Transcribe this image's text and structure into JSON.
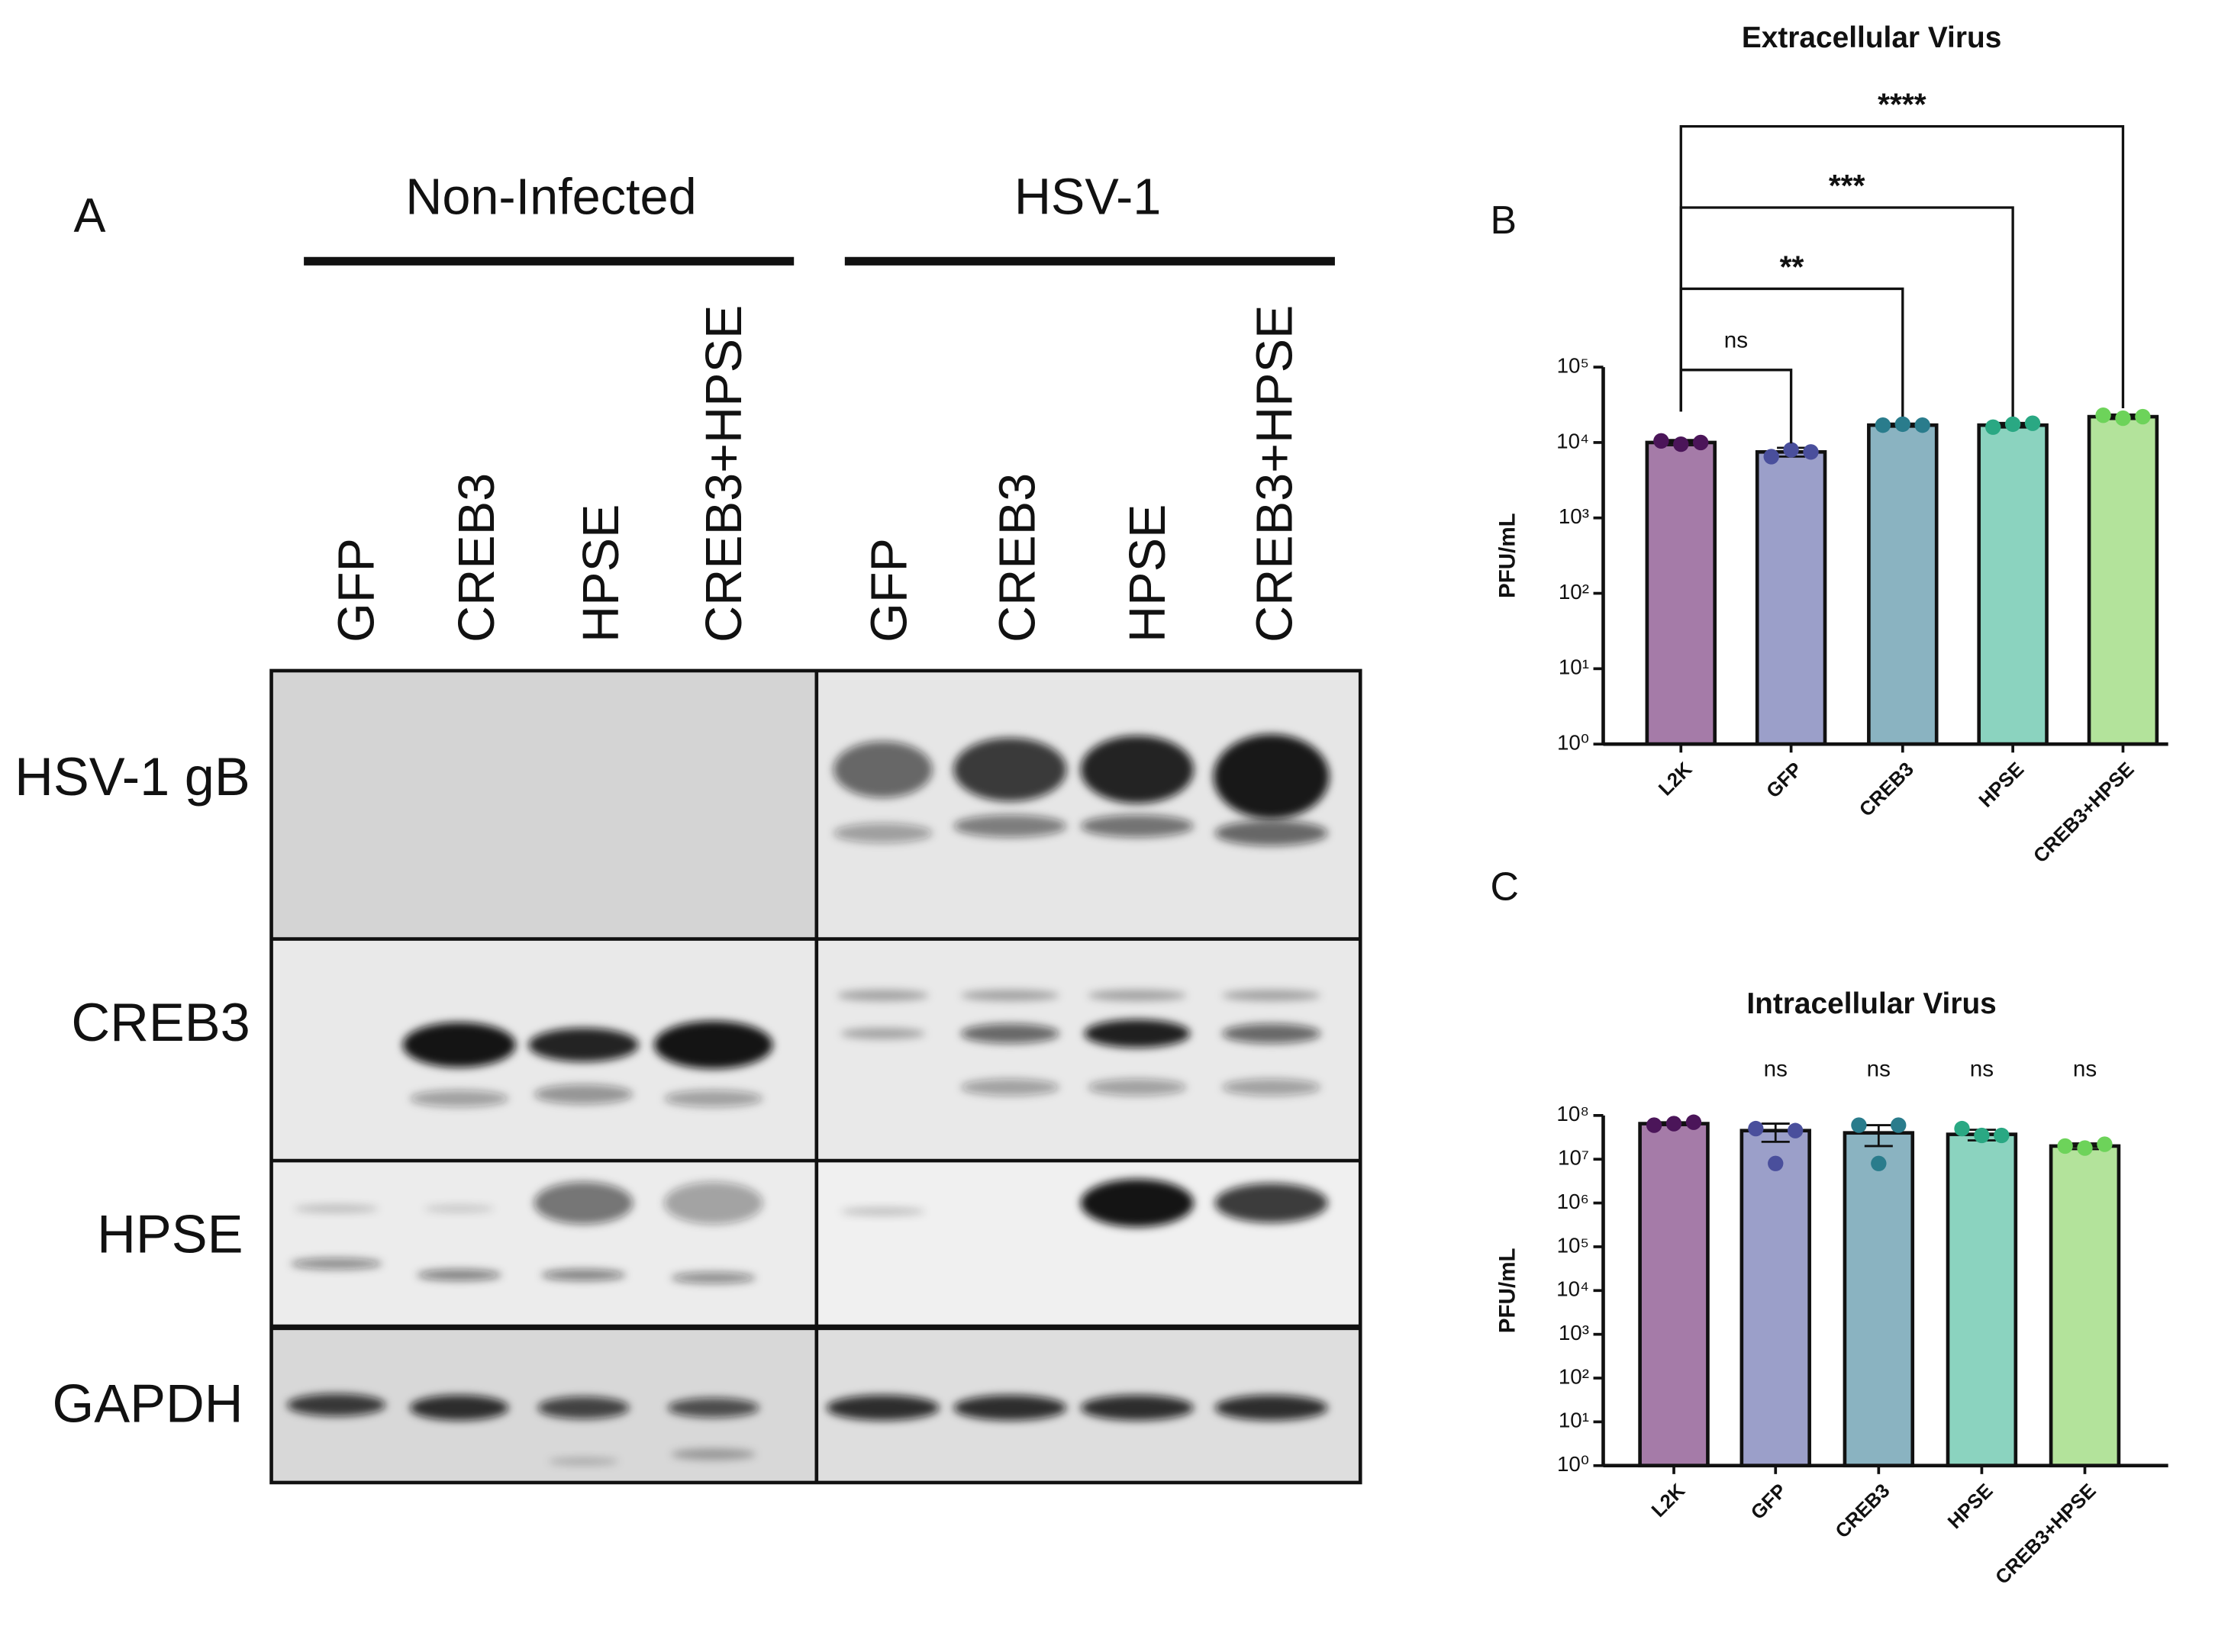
{
  "panel_labels": [
    "A",
    "B",
    "C"
  ],
  "blot": {
    "groups": [
      "Non-Infected",
      "HSV-1"
    ],
    "lanes": [
      "GFP",
      "CREB3",
      "HPSE",
      "CREB3+HPSE",
      "GFP",
      "CREB3",
      "HPSE",
      "CREB3+HPSE"
    ],
    "rows": [
      "HSV-1 gB",
      "CREB3",
      "HPSE",
      "GAPDH"
    ]
  },
  "chart_data": [
    {
      "type": "bar",
      "title": "Extracellular Virus",
      "y_label": "PFU/mL",
      "log_scale": true,
      "categories": [
        "L2K",
        "GFP",
        "CREB3",
        "HPSE",
        "CREB3+HPSE"
      ],
      "values": [
        10000,
        7500,
        17000,
        17000,
        22000
      ],
      "errors": [
        800,
        1000,
        800,
        1200,
        1500
      ],
      "replicates": [
        [
          10500,
          9500,
          10000
        ],
        [
          6500,
          8000,
          7500
        ],
        [
          17000,
          17500,
          17000
        ],
        [
          16000,
          17500,
          18000
        ],
        [
          23000,
          21000,
          22000
        ]
      ],
      "colors": [
        "#a57ba8",
        "#9b9fc9",
        "#8ab3c1",
        "#8bd3bf",
        "#b3e39b"
      ],
      "point_colors": [
        "#4b1559",
        "#4a4f9c",
        "#2a7c8c",
        "#2aa883",
        "#6dd35a"
      ],
      "significance": [
        null,
        "ns",
        "**",
        "***",
        "****"
      ],
      "ylim": [
        1,
        100000
      ],
      "yticks": [
        {
          "value": 1,
          "label": "10⁰"
        },
        {
          "value": 10,
          "label": "10¹"
        },
        {
          "value": 100,
          "label": "10²"
        },
        {
          "value": 1000,
          "label": "10³"
        },
        {
          "value": 10000,
          "label": "10⁴"
        },
        {
          "value": 100000,
          "label": "10⁵"
        }
      ]
    },
    {
      "type": "bar",
      "title": "Intracellular Virus",
      "y_label": "PFU/mL",
      "log_scale": true,
      "categories": [
        "L2K",
        "GFP",
        "CREB3",
        "HPSE",
        "CREB3+HPSE"
      ],
      "values": [
        65000000,
        45000000,
        40000000,
        37000000,
        20000000
      ],
      "errors": [
        5000000,
        20000000,
        20000000,
        10000000,
        3000000
      ],
      "replicates": [
        [
          60000000,
          65000000,
          70000000
        ],
        [
          50000000,
          8000000,
          45000000
        ],
        [
          60000000,
          8000000,
          60000000
        ],
        [
          50000000,
          35000000,
          35000000
        ],
        [
          20000000,
          18000000,
          22000000
        ]
      ],
      "colors": [
        "#a57ba8",
        "#9b9fc9",
        "#8ab3c1",
        "#8bd3bf",
        "#b3e39b"
      ],
      "point_colors": [
        "#4b1559",
        "#4a4f9c",
        "#2a7c8c",
        "#2aa883",
        "#6dd35a"
      ],
      "significance": [
        null,
        "ns",
        "ns",
        "ns",
        "ns"
      ],
      "ylim": [
        1,
        100000000
      ],
      "yticks": [
        {
          "value": 1,
          "label": "10⁰"
        },
        {
          "value": 10,
          "label": "10¹"
        },
        {
          "value": 100,
          "label": "10²"
        },
        {
          "value": 1000,
          "label": "10³"
        },
        {
          "value": 10000,
          "label": "10⁴"
        },
        {
          "value": 100000,
          "label": "10⁵"
        },
        {
          "value": 1000000,
          "label": "10⁶"
        },
        {
          "value": 10000000,
          "label": "10⁷"
        },
        {
          "value": 100000000,
          "label": "10⁸"
        }
      ]
    }
  ]
}
